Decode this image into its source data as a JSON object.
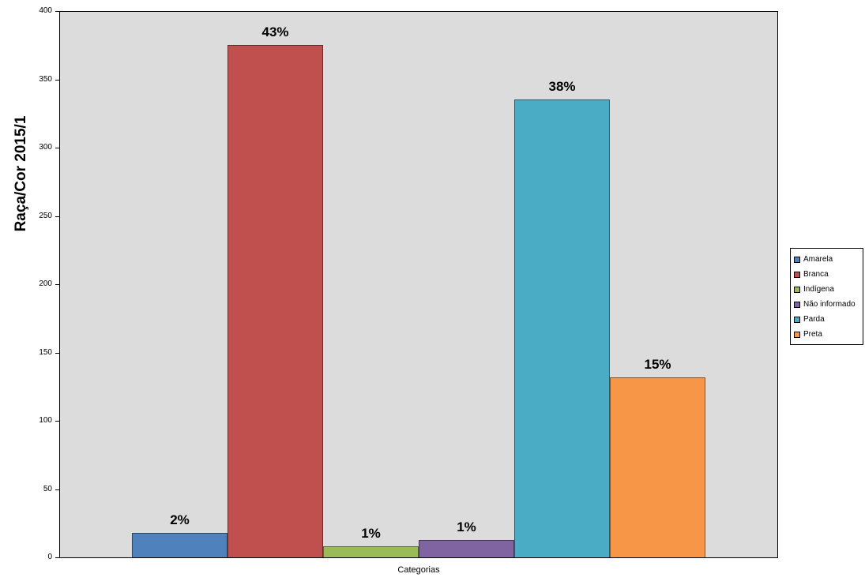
{
  "chart_data": {
    "type": "bar",
    "title": "",
    "ylabel": "Raça/Cor 2015/1",
    "xlabel": "Categorias",
    "ylim": [
      0,
      400
    ],
    "yticks": [
      0,
      50,
      100,
      150,
      200,
      250,
      300,
      350,
      400
    ],
    "grid": false,
    "legend_position": "right",
    "plot_background": "#DCDCDC",
    "series": [
      {
        "name": "Amarela",
        "value": 18,
        "percent_label": "2%",
        "color": "#4F81BD"
      },
      {
        "name": "Branca",
        "value": 375,
        "percent_label": "43%",
        "color": "#C0504D"
      },
      {
        "name": "Indígena",
        "value": 8,
        "percent_label": "1%",
        "color": "#9BBB59"
      },
      {
        "name": "Não informado",
        "value": 13,
        "percent_label": "1%",
        "color": "#8064A2"
      },
      {
        "name": "Parda",
        "value": 335,
        "percent_label": "38%",
        "color": "#4BACC6"
      },
      {
        "name": "Preta",
        "value": 132,
        "percent_label": "15%",
        "color": "#F79646"
      }
    ]
  }
}
